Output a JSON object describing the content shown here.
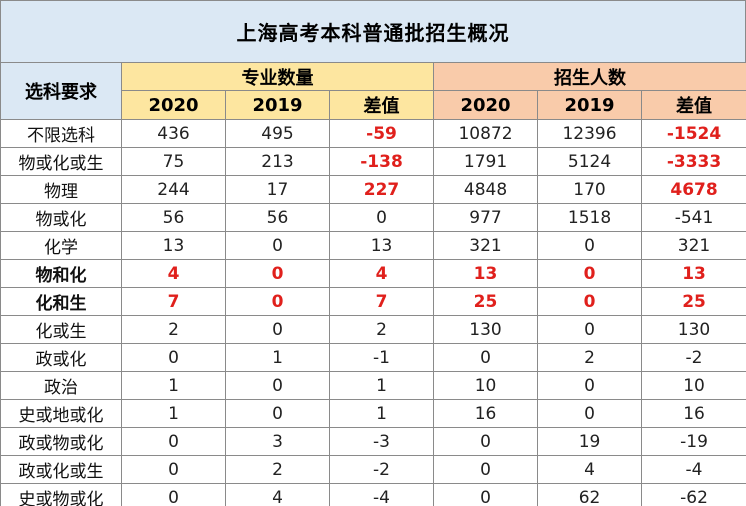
{
  "title": "上海高考本科普通批招生概况",
  "header": {
    "row_label": "选科要求",
    "group1": "专业数量",
    "group2": "招生人数",
    "sub": [
      "2020",
      "2019",
      "差值",
      "2020",
      "2019",
      "差值"
    ]
  },
  "rows": [
    {
      "label": "不限选科",
      "cells": [
        "436",
        "495",
        "-59",
        "10872",
        "12396",
        "-1524"
      ],
      "hl": [
        2,
        5
      ],
      "red": false
    },
    {
      "label": "物或化或生",
      "cells": [
        "75",
        "213",
        "-138",
        "1791",
        "5124",
        "-3333"
      ],
      "hl": [
        2,
        5
      ],
      "red": false
    },
    {
      "label": "物理",
      "cells": [
        "244",
        "17",
        "227",
        "4848",
        "170",
        "4678"
      ],
      "hl": [
        2,
        5
      ],
      "red": false
    },
    {
      "label": "物或化",
      "cells": [
        "56",
        "56",
        "0",
        "977",
        "1518",
        "-541"
      ],
      "hl": [],
      "red": false
    },
    {
      "label": "化学",
      "cells": [
        "13",
        "0",
        "13",
        "321",
        "0",
        "321"
      ],
      "hl": [],
      "red": false
    },
    {
      "label": "物和化",
      "cells": [
        "4",
        "0",
        "4",
        "13",
        "0",
        "13"
      ],
      "hl": [],
      "red": true
    },
    {
      "label": "化和生",
      "cells": [
        "7",
        "0",
        "7",
        "25",
        "0",
        "25"
      ],
      "hl": [],
      "red": true
    },
    {
      "label": "化或生",
      "cells": [
        "2",
        "0",
        "2",
        "130",
        "0",
        "130"
      ],
      "hl": [],
      "red": false
    },
    {
      "label": "政或化",
      "cells": [
        "0",
        "1",
        "-1",
        "0",
        "2",
        "-2"
      ],
      "hl": [],
      "red": false
    },
    {
      "label": "政治",
      "cells": [
        "1",
        "0",
        "1",
        "10",
        "0",
        "10"
      ],
      "hl": [],
      "red": false
    },
    {
      "label": "史或地或化",
      "cells": [
        "1",
        "0",
        "1",
        "16",
        "0",
        "16"
      ],
      "hl": [],
      "red": false
    },
    {
      "label": "政或物或化",
      "cells": [
        "0",
        "3",
        "-3",
        "0",
        "19",
        "-19"
      ],
      "hl": [],
      "red": false
    },
    {
      "label": "政或化或生",
      "cells": [
        "0",
        "2",
        "-2",
        "0",
        "4",
        "-4"
      ],
      "hl": [],
      "red": false
    },
    {
      "label": "史或物或化",
      "cells": [
        "0",
        "4",
        "-4",
        "0",
        "62",
        "-62"
      ],
      "hl": [],
      "red": false
    }
  ]
}
